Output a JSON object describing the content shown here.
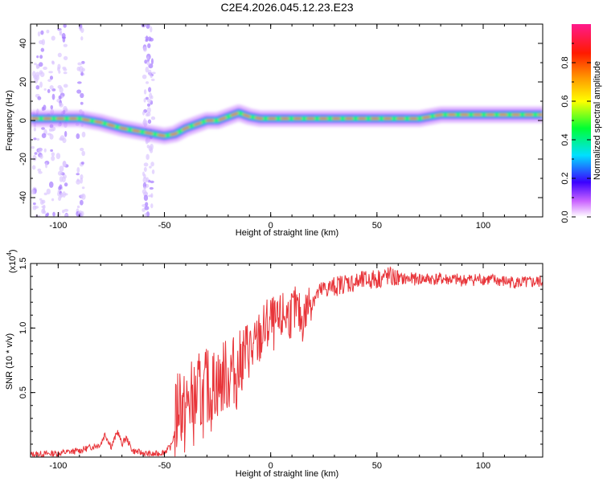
{
  "title": "C2E4.2026.045.12.23.E23",
  "chart_data": [
    {
      "type": "heatmap",
      "xlabel": "Height of straight line (km)",
      "ylabel": "Frequency (Hz)",
      "xlim": [
        -113,
        128
      ],
      "ylim": [
        -50,
        50
      ],
      "xticks": [
        -100,
        -50,
        0,
        50,
        100
      ],
      "yticks": [
        -40,
        -20,
        0,
        20,
        40
      ],
      "colorbar": {
        "label": "Normalized spectral amplitude",
        "range": [
          0.0,
          1.0
        ],
        "ticks": [
          "0.0",
          "0.2",
          "0.4",
          "0.6",
          "0.8"
        ]
      },
      "ridge": {
        "x": [
          -113,
          -100,
          -90,
          -80,
          -70,
          -60,
          -55,
          -50,
          -45,
          -40,
          -35,
          -30,
          -25,
          -20,
          -15,
          -10,
          -5,
          0,
          10,
          20,
          30,
          40,
          50,
          60,
          70,
          80,
          90,
          100,
          110,
          120,
          128
        ],
        "freq": [
          1,
          1,
          1,
          -1,
          -4,
          -6,
          -7,
          -8,
          -7,
          -4,
          -2,
          0,
          0,
          2,
          4,
          2,
          1,
          1,
          1,
          1,
          1,
          1,
          1,
          1,
          1,
          3,
          3,
          3,
          3,
          3,
          3
        ]
      }
    },
    {
      "type": "line",
      "xlabel": "Height of straight line (km)",
      "ylabel": "SNR (10 * v/v)",
      "scale_label": "(x10",
      "scale_exp": "4",
      "xlim": [
        -113,
        128
      ],
      "ylim": [
        0,
        1.5
      ],
      "xticks": [
        -100,
        -50,
        0,
        50,
        100
      ],
      "yticks": [
        "0.5",
        "1.0",
        "1.5"
      ],
      "series": [
        {
          "name": "SNR",
          "color": "#e8353a",
          "x": [
            -113,
            -100,
            -90,
            -80,
            -78,
            -75,
            -72,
            -70,
            -68,
            -65,
            -60,
            -55,
            -50,
            -47,
            -45,
            -43,
            -41,
            -40,
            -38,
            -36,
            -34,
            -32,
            -30,
            -28,
            -26,
            -24,
            -22,
            -20,
            -18,
            -16,
            -14,
            -12,
            -10,
            -8,
            -6,
            -4,
            -2,
            0,
            3,
            6,
            9,
            12,
            15,
            18,
            21,
            25,
            30,
            35,
            40,
            45,
            50,
            55,
            60,
            70,
            80,
            90,
            100,
            110,
            120,
            128
          ],
          "y": [
            0.02,
            0.03,
            0.05,
            0.1,
            0.18,
            0.08,
            0.2,
            0.1,
            0.15,
            0.05,
            0.03,
            0.02,
            0.04,
            0.08,
            0.2,
            0.5,
            0.3,
            0.35,
            0.45,
            0.4,
            0.5,
            0.45,
            0.55,
            0.5,
            0.6,
            0.55,
            0.65,
            0.6,
            0.7,
            0.62,
            0.75,
            0.8,
            0.85,
            0.8,
            0.9,
            0.95,
            1.0,
            1.05,
            1.0,
            1.1,
            1.1,
            1.15,
            1.05,
            1.2,
            1.25,
            1.3,
            1.32,
            1.35,
            1.35,
            1.37,
            1.38,
            1.4,
            1.38,
            1.38,
            1.38,
            1.37,
            1.38,
            1.36,
            1.35,
            1.36
          ]
        }
      ]
    }
  ]
}
